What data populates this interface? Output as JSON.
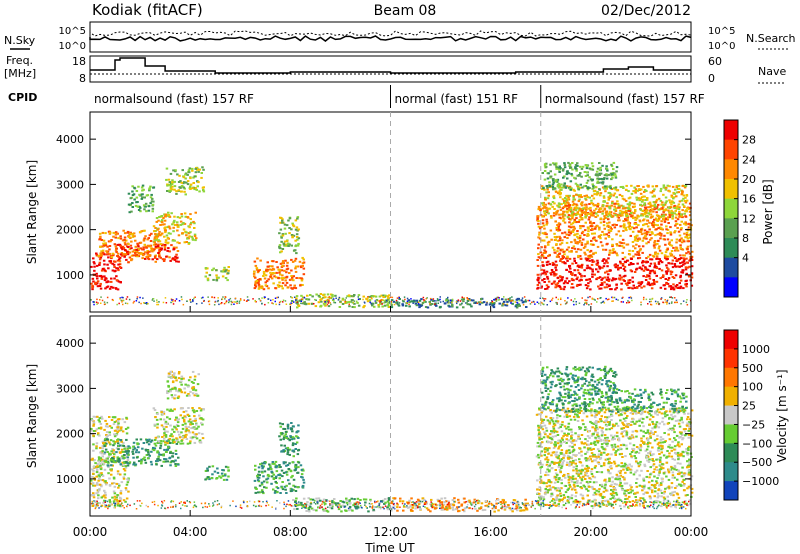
{
  "header": {
    "left": "Kodiak (fitACF)",
    "center": "Beam 08",
    "right": "02/Dec/2012"
  },
  "strip": {
    "nsky_label": "N.Sky",
    "nsearch_label": "N.Search",
    "freq_label_line1": "Freq.",
    "freq_label_line2": "[MHz]",
    "nave_label": "Nave",
    "cpid_label": "CPID",
    "nsky_ticks": [
      "10^5",
      "10^0"
    ],
    "nsearch_ticks": [
      "10^5",
      "10^0"
    ],
    "freq_ticks": [
      "18",
      "8"
    ],
    "nave_ticks": [
      "60",
      "0"
    ]
  },
  "cpid_segments": [
    {
      "label": "normalsound (fast) 157 RF",
      "start": 0,
      "end": 12
    },
    {
      "label": "normal (fast) 151 RF",
      "start": 12,
      "end": 18
    },
    {
      "label": "normalsound (fast) 157 RF",
      "start": 18,
      "end": 24
    }
  ],
  "chart_data": [
    {
      "type": "heatmap",
      "name": "power",
      "xlabel": "Time UT",
      "ylabel": "Slant Range [km]",
      "x_ticks": [
        "00:00",
        "04:00",
        "08:00",
        "12:00",
        "16:00",
        "20:00",
        "00:00"
      ],
      "x_range_hours": [
        0,
        24
      ],
      "ylim": [
        180,
        4600
      ],
      "y_ticks": [
        1000,
        2000,
        3000,
        4000
      ],
      "colorbar": {
        "label": "Power [dB]",
        "ticks": [
          "28",
          "24",
          "20",
          "16",
          "12",
          "8",
          "4"
        ],
        "colors": [
          "#0000ff",
          "#1e4ba0",
          "#2e8b57",
          "#5aa050",
          "#8ed63a",
          "#f0c000",
          "#ff8800",
          "#ff4400",
          "#ee0000"
        ]
      },
      "echo_regions": [
        {
          "t0": 0.0,
          "t1": 1.2,
          "r0": 700,
          "r1": 1500,
          "level": 8
        },
        {
          "t0": 0.3,
          "t1": 2.8,
          "r0": 1400,
          "r1": 2000,
          "level": 6
        },
        {
          "t0": 1.0,
          "t1": 3.5,
          "r0": 1300,
          "r1": 1700,
          "level": 7
        },
        {
          "t0": 2.5,
          "t1": 4.2,
          "r0": 1700,
          "r1": 2400,
          "level": 5
        },
        {
          "t0": 3.0,
          "t1": 4.5,
          "r0": 2800,
          "r1": 3400,
          "level": 4
        },
        {
          "t0": 1.5,
          "t1": 2.5,
          "r0": 2400,
          "r1": 3000,
          "level": 3
        },
        {
          "t0": 4.5,
          "t1": 5.5,
          "r0": 900,
          "r1": 1200,
          "level": 4
        },
        {
          "t0": 6.5,
          "t1": 8.5,
          "r0": 700,
          "r1": 1400,
          "level": 6
        },
        {
          "t0": 7.5,
          "t1": 8.3,
          "r0": 1500,
          "r1": 2300,
          "level": 4
        },
        {
          "t0": 8.0,
          "t1": 12.0,
          "r0": 300,
          "r1": 600,
          "level": 4
        },
        {
          "t0": 12.0,
          "t1": 17.5,
          "r0": 300,
          "r1": 500,
          "level": 2
        },
        {
          "t0": 17.8,
          "t1": 24.0,
          "r0": 700,
          "r1": 1400,
          "level": 8
        },
        {
          "t0": 17.8,
          "t1": 24.0,
          "r0": 1400,
          "r1": 2600,
          "level": 6
        },
        {
          "t0": 18.0,
          "t1": 23.8,
          "r0": 2300,
          "r1": 3000,
          "level": 5
        },
        {
          "t0": 18.0,
          "t1": 21.0,
          "r0": 2900,
          "r1": 3500,
          "level": 3
        }
      ]
    },
    {
      "type": "heatmap",
      "name": "velocity",
      "xlabel": "Time UT",
      "ylabel": "Slant Range [km]",
      "x_ticks": [
        "00:00",
        "04:00",
        "08:00",
        "12:00",
        "16:00",
        "20:00",
        "00:00"
      ],
      "x_range_hours": [
        0,
        24
      ],
      "ylim": [
        180,
        4600
      ],
      "y_ticks": [
        1000,
        2000,
        3000,
        4000
      ],
      "colorbar": {
        "label": "Velocity [m s⁻¹]",
        "ticks": [
          "1000",
          "500",
          "100",
          "25",
          "−25",
          "−100",
          "−500",
          "−1000"
        ],
        "colors": [
          "#1144bb",
          "#2e8b8b",
          "#2e8b57",
          "#66cc33",
          "#c8c8c8",
          "#f0b000",
          "#ff7700",
          "#ff3300",
          "#ee0000"
        ]
      },
      "echo_regions": [
        {
          "t0": 0.0,
          "t1": 1.5,
          "r0": 400,
          "r1": 2400,
          "level": 4
        },
        {
          "t0": 0.5,
          "t1": 3.5,
          "r0": 1300,
          "r1": 1900,
          "level": 2
        },
        {
          "t0": 2.5,
          "t1": 4.5,
          "r0": 1800,
          "r1": 2600,
          "level": 4
        },
        {
          "t0": 3.0,
          "t1": 4.3,
          "r0": 2800,
          "r1": 3400,
          "level": 4
        },
        {
          "t0": 4.5,
          "t1": 5.5,
          "r0": 1000,
          "r1": 1300,
          "level": 2
        },
        {
          "t0": 6.5,
          "t1": 8.5,
          "r0": 700,
          "r1": 1400,
          "level": 2
        },
        {
          "t0": 7.5,
          "t1": 8.3,
          "r0": 1500,
          "r1": 2300,
          "level": 2
        },
        {
          "t0": 8.0,
          "t1": 12.0,
          "r0": 300,
          "r1": 600,
          "level": 3
        },
        {
          "t0": 12.0,
          "t1": 17.5,
          "r0": 300,
          "r1": 600,
          "level": 5
        },
        {
          "t0": 17.8,
          "t1": 24.0,
          "r0": 400,
          "r1": 2600,
          "level": 4
        },
        {
          "t0": 18.0,
          "t1": 23.8,
          "r0": 2500,
          "r1": 3000,
          "level": 2
        },
        {
          "t0": 18.0,
          "t1": 21.0,
          "r0": 3000,
          "r1": 3500,
          "level": 2
        }
      ]
    }
  ]
}
